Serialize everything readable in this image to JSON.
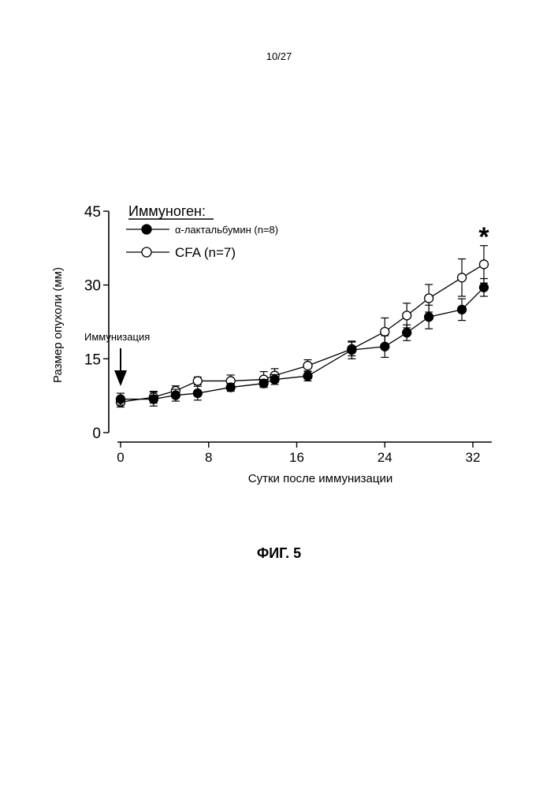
{
  "page_number": "10/27",
  "figure_label": "ФИГ. 5",
  "annotation": {
    "arrow_label": "Иммунизация",
    "significance_marker": "*"
  },
  "chart_data": {
    "type": "line",
    "xlabel": "Сутки после иммунизации",
    "ylabel": "Размер опухоли (мм)",
    "xlim": [
      0,
      33
    ],
    "ylim": [
      0,
      45
    ],
    "x_ticks": [
      0,
      8,
      16,
      24,
      32
    ],
    "y_ticks": [
      0,
      15,
      30,
      45
    ],
    "legend": {
      "title": "Иммуноген:",
      "position": "top-left"
    },
    "series": [
      {
        "name": "α-лактальбумин (n=8)",
        "marker": "filled-circle",
        "color": "#000000",
        "x": [
          0,
          3,
          5,
          7,
          10,
          13,
          14,
          17,
          21,
          24,
          26,
          28,
          31,
          33
        ],
        "y": [
          6.8,
          6.8,
          7.6,
          8.0,
          9.2,
          10.0,
          10.8,
          11.5,
          16.8,
          17.5,
          20.3,
          23.5,
          25.0,
          29.5
        ],
        "err": [
          1.2,
          1.4,
          1.2,
          1.4,
          0.8,
          0.8,
          1.0,
          1.0,
          1.8,
          2.2,
          1.6,
          2.4,
          2.2,
          1.8
        ]
      },
      {
        "name": "CFA (n=7)",
        "marker": "open-circle",
        "color": "#000000",
        "x": [
          0,
          3,
          5,
          7,
          10,
          13,
          14,
          17,
          21,
          24,
          26,
          28,
          31,
          33
        ],
        "y": [
          6.2,
          7.2,
          8.5,
          10.5,
          10.5,
          10.8,
          11.6,
          13.6,
          17.0,
          20.5,
          23.8,
          27.3,
          31.5,
          34.2
        ],
        "err": [
          1.0,
          1.2,
          1.0,
          0.8,
          1.2,
          1.6,
          1.4,
          1.2,
          1.4,
          2.8,
          2.5,
          2.8,
          3.8,
          3.8
        ]
      }
    ]
  }
}
